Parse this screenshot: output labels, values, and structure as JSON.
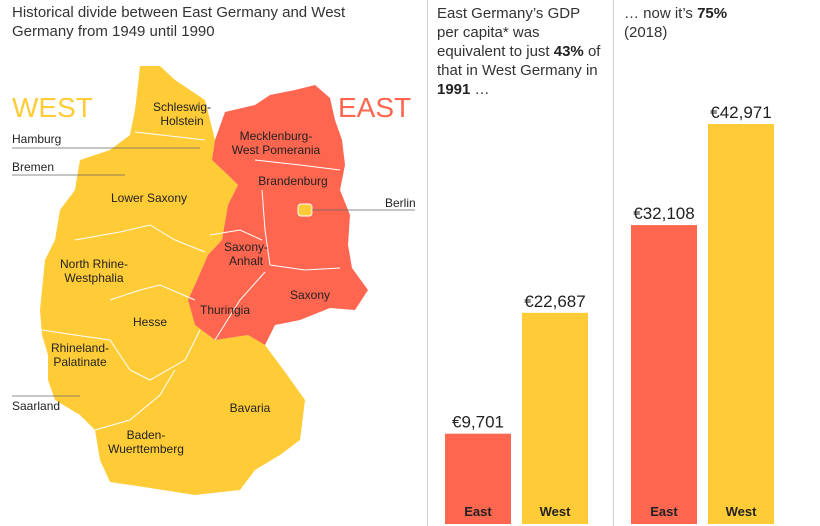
{
  "map": {
    "title": "Historical divide between East Germany and West Germany from 1949 until 1990",
    "west_label": "WEST",
    "east_label": "EAST",
    "west_color": "#FFCB37",
    "east_color": "#FF6650",
    "states": {
      "schleswig": "Schleswig-Holstein",
      "lower_saxony": "Lower Saxony",
      "nrw": "North Rhine-Westphalia",
      "hesse": "Hesse",
      "rhineland": "Rhineland-Palatinate",
      "bavaria": "Bavaria",
      "bw": "Baden-Wuerttemberg",
      "mv": "Mecklenburg-West Pomerania",
      "brandenburg": "Brandenburg",
      "saxony_anhalt": "Saxony-Anhalt",
      "saxony": "Saxony",
      "thuringia": "Thuringia"
    },
    "callouts": {
      "hamburg": "Hamburg",
      "bremen": "Bremen",
      "berlin": "Berlin",
      "saarland": "Saarland"
    }
  },
  "panel_1991": {
    "text_parts": {
      "pre": "East Germany’s GDP per capita* was equivalent to just ",
      "pct": "43%",
      "mid": " of that in West Germany in ",
      "year": "1991",
      "post": " …"
    }
  },
  "panel_2018": {
    "text_parts": {
      "pre": "… now it’s ",
      "pct": "75%",
      "post": "(2018)"
    }
  },
  "chart_data": [
    {
      "type": "bar",
      "title": "",
      "categories": [
        "East",
        "West"
      ],
      "values": [
        9701,
        22687
      ],
      "value_labels": [
        "€9,701",
        "€22,687"
      ],
      "colors": [
        "#FF6650",
        "#FFCB37"
      ],
      "ylim": [
        0,
        45000
      ],
      "grid": false
    },
    {
      "type": "bar",
      "title": "",
      "categories": [
        "East",
        "West"
      ],
      "values": [
        32108,
        42971
      ],
      "value_labels": [
        "€32,108",
        "€42,971"
      ],
      "colors": [
        "#FF6650",
        "#FFCB37"
      ],
      "ylim": [
        0,
        45000
      ],
      "grid": false
    }
  ]
}
